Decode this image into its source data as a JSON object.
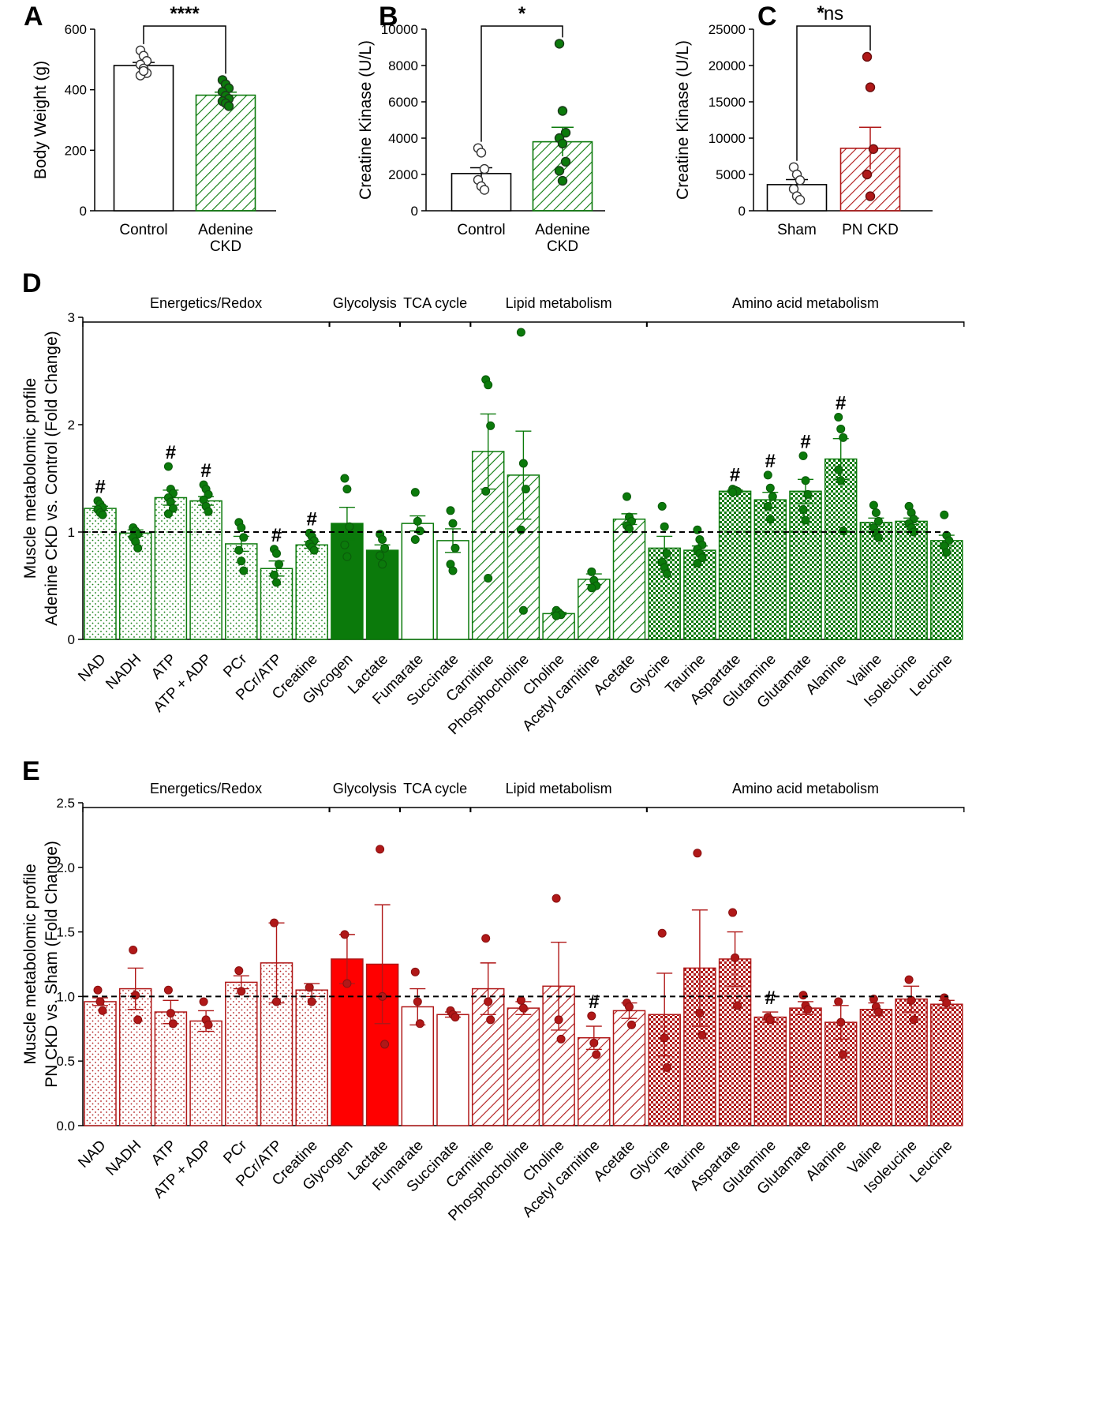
{
  "colors": {
    "green": "#0b7a0b",
    "green_light": "#dff0df",
    "red": "#b01818",
    "red_bright": "#ff0000",
    "black": "#000000",
    "point_open_stroke": "#333333"
  },
  "chart_data": [
    {
      "id": "A",
      "label": "A",
      "type": "bar",
      "ylabel": "Body Weight (g)",
      "ylim": [
        0,
        600
      ],
      "yticks": [
        0,
        200,
        400,
        600
      ],
      "categories": [
        {
          "name": "Control",
          "lines": [
            "Control"
          ],
          "mean": 480,
          "sem": 10,
          "fill": "open",
          "points": [
            530,
            512,
            495,
            483,
            470,
            455,
            447,
            462
          ]
        },
        {
          "name": "Adenine CKD",
          "lines": [
            "Adenine",
            "CKD"
          ],
          "mean": 382,
          "sem": 10,
          "fill": "hatch_green",
          "points": [
            432,
            418,
            405,
            393,
            380,
            370,
            362,
            355,
            346
          ]
        }
      ],
      "significance": {
        "label": "****",
        "between": [
          0,
          1
        ]
      }
    },
    {
      "id": "B",
      "label": "B",
      "type": "bar",
      "ylabel": "Creatine Kinase (U/L)",
      "ylim": [
        0,
        10000
      ],
      "yticks": [
        0,
        2000,
        4000,
        6000,
        8000,
        10000
      ],
      "categories": [
        {
          "name": "Control",
          "lines": [
            "Control"
          ],
          "mean": 2050,
          "sem": 320,
          "fill": "open",
          "points": [
            3450,
            3200,
            2300,
            1700,
            1350,
            1150
          ]
        },
        {
          "name": "Adenine CKD",
          "lines": [
            "Adenine",
            "CKD"
          ],
          "mean": 3800,
          "sem": 800,
          "fill": "hatch_green",
          "points": [
            9200,
            5500,
            4300,
            4000,
            3700,
            2700,
            2200,
            1650
          ]
        }
      ],
      "significance": {
        "label": "*",
        "between": [
          0,
          1
        ]
      }
    },
    {
      "id": "C",
      "label": "C",
      "type": "bar",
      "ylabel": "Creatine Kinase (U/L)",
      "ylim": [
        0,
        25000
      ],
      "yticks": [
        0,
        5000,
        10000,
        15000,
        20000,
        25000
      ],
      "corner_mark": "*",
      "categories": [
        {
          "name": "Sham",
          "lines": [
            "Sham"
          ],
          "mean": 3600,
          "sem": 700,
          "fill": "open",
          "points": [
            6000,
            5000,
            4200,
            3000,
            2000,
            1500
          ]
        },
        {
          "name": "PN CKD",
          "lines": [
            "PN CKD"
          ],
          "mean": 8600,
          "sem": 2900,
          "fill": "hatch_red",
          "points": [
            21200,
            17000,
            8500,
            5000,
            2000
          ]
        }
      ],
      "significance": {
        "label": "ns",
        "between": [
          0,
          1
        ]
      }
    },
    {
      "id": "D",
      "label": "D",
      "type": "bar",
      "ylabel": [
        "Muscle metabolomic profile",
        "Adenine CKD vs. Control (Fold Change)"
      ],
      "ylim": [
        0,
        3
      ],
      "yticks": [
        "0",
        "1",
        "2",
        "3"
      ],
      "ytick_values": [
        0,
        1,
        2,
        3
      ],
      "reference_line": 1.0,
      "color": "green",
      "groups": [
        {
          "label": "Energetics/Redox",
          "from": 0,
          "to": 6
        },
        {
          "label": "Glycolysis",
          "from": 7,
          "to": 8
        },
        {
          "label": "TCA cycle",
          "from": 9,
          "to": 10
        },
        {
          "label": "Lipid metabolism",
          "from": 11,
          "to": 15
        },
        {
          "label": "Amino acid metabolism",
          "from": 16,
          "to": 24
        }
      ],
      "categories": [
        {
          "name": "NAD",
          "mean": 1.22,
          "sem": 0.02,
          "fill": "dots",
          "points": [
            1.29,
            1.26,
            1.23,
            1.21,
            1.18,
            1.16
          ],
          "mark": "#"
        },
        {
          "name": "NADH",
          "mean": 0.99,
          "sem": 0.03,
          "fill": "dots",
          "points": [
            1.04,
            1.01,
            0.98,
            0.95,
            0.91,
            0.85
          ],
          "mark": ""
        },
        {
          "name": "ATP",
          "mean": 1.32,
          "sem": 0.07,
          "fill": "dots",
          "points": [
            1.61,
            1.4,
            1.36,
            1.32,
            1.28,
            1.22,
            1.17
          ],
          "mark": "#"
        },
        {
          "name": "ATP + ADP",
          "mean": 1.29,
          "sem": 0.04,
          "fill": "dots",
          "points": [
            1.44,
            1.4,
            1.35,
            1.3,
            1.24,
            1.19
          ],
          "mark": "#"
        },
        {
          "name": "PCr",
          "mean": 0.89,
          "sem": 0.07,
          "fill": "dots",
          "points": [
            1.09,
            1.04,
            0.95,
            0.83,
            0.73,
            0.64
          ],
          "mark": ""
        },
        {
          "name": "PCr/ATP",
          "mean": 0.66,
          "sem": 0.07,
          "fill": "dots",
          "points": [
            0.84,
            0.8,
            0.7,
            0.6,
            0.53
          ],
          "mark": "#"
        },
        {
          "name": "Creatine",
          "mean": 0.88,
          "sem": 0.03,
          "fill": "dots",
          "points": [
            0.99,
            0.96,
            0.92,
            0.89,
            0.86,
            0.83
          ],
          "mark": "#"
        },
        {
          "name": "Glycogen",
          "mean": 1.08,
          "sem": 0.15,
          "fill": "solid",
          "points": [
            1.5,
            1.4,
            1.05,
            0.88,
            0.77
          ],
          "mark": ""
        },
        {
          "name": "Lactate",
          "mean": 0.83,
          "sem": 0.05,
          "fill": "solid",
          "points": [
            0.98,
            0.93,
            0.85,
            0.78,
            0.7
          ],
          "mark": ""
        },
        {
          "name": "Fumarate",
          "mean": 1.08,
          "sem": 0.07,
          "fill": "open",
          "points": [
            1.37,
            1.1,
            1.01,
            0.93
          ],
          "mark": ""
        },
        {
          "name": "Succinate",
          "mean": 0.92,
          "sem": 0.11,
          "fill": "open",
          "points": [
            1.2,
            1.08,
            0.85,
            0.7,
            0.64
          ],
          "mark": ""
        },
        {
          "name": "Carnitine",
          "mean": 1.75,
          "sem": 0.35,
          "fill": "hatch",
          "points": [
            2.42,
            2.37,
            1.99,
            1.38,
            0.57
          ],
          "mark": ""
        },
        {
          "name": "Phosphocholine",
          "mean": 1.53,
          "sem": 0.41,
          "fill": "hatch",
          "points": [
            2.86,
            1.64,
            1.4,
            1.02,
            0.27
          ],
          "mark": ""
        },
        {
          "name": "Choline",
          "mean": 0.24,
          "sem": 0.01,
          "fill": "hatch",
          "points": [
            0.27,
            0.25,
            0.23,
            0.22
          ],
          "mark": ""
        },
        {
          "name": "Acetyl carnitine",
          "mean": 0.56,
          "sem": 0.05,
          "fill": "hatch",
          "points": [
            0.63,
            0.55,
            0.5,
            0.48
          ],
          "mark": ""
        },
        {
          "name": "Acetate",
          "mean": 1.12,
          "sem": 0.05,
          "fill": "hatch",
          "points": [
            1.33,
            1.14,
            1.1,
            1.06,
            1.03
          ],
          "mark": ""
        },
        {
          "name": "Glycine",
          "mean": 0.85,
          "sem": 0.11,
          "fill": "checker",
          "points": [
            1.24,
            1.05,
            0.8,
            0.72,
            0.67,
            0.61
          ],
          "mark": ""
        },
        {
          "name": "Taurine",
          "mean": 0.83,
          "sem": 0.04,
          "fill": "checker",
          "points": [
            1.02,
            0.93,
            0.88,
            0.84,
            0.8,
            0.76,
            0.71
          ],
          "mark": ""
        },
        {
          "name": "Aspartate",
          "mean": 1.38,
          "sem": 0.01,
          "fill": "checker",
          "points": [
            1.4,
            1.39,
            1.38,
            1.37
          ],
          "mark": "#"
        },
        {
          "name": "Glutamine",
          "mean": 1.3,
          "sem": 0.07,
          "fill": "checker",
          "points": [
            1.53,
            1.41,
            1.33,
            1.24,
            1.12
          ],
          "mark": "#"
        },
        {
          "name": "Glutamate",
          "mean": 1.38,
          "sem": 0.11,
          "fill": "checker",
          "points": [
            1.71,
            1.48,
            1.35,
            1.21,
            1.11
          ],
          "mark": "#"
        },
        {
          "name": "Alanine",
          "mean": 1.68,
          "sem": 0.19,
          "fill": "checker",
          "points": [
            2.07,
            1.96,
            1.88,
            1.58,
            1.48,
            1.01
          ],
          "mark": "#"
        },
        {
          "name": "Valine",
          "mean": 1.09,
          "sem": 0.04,
          "fill": "checker",
          "points": [
            1.25,
            1.18,
            1.1,
            1.04,
            0.99,
            0.95
          ],
          "mark": ""
        },
        {
          "name": "Isoleucine",
          "mean": 1.1,
          "sem": 0.03,
          "fill": "checker",
          "points": [
            1.24,
            1.18,
            1.12,
            1.08,
            1.04,
            1.0
          ],
          "mark": ""
        },
        {
          "name": "Leucine",
          "mean": 0.92,
          "sem": 0.05,
          "fill": "checker",
          "points": [
            1.16,
            0.97,
            0.92,
            0.87,
            0.81
          ],
          "mark": ""
        }
      ]
    },
    {
      "id": "E",
      "label": "E",
      "type": "bar",
      "ylabel": [
        "Muscle metabolomic profile",
        "PN CKD vs. Sham (Fold Change)"
      ],
      "ylim": [
        0,
        2.5
      ],
      "yticks": [
        "0.0",
        "0.5",
        "1.0",
        "1.5",
        "2.0",
        "2.5"
      ],
      "ytick_values": [
        0,
        0.5,
        1.0,
        1.5,
        2.0,
        2.5
      ],
      "reference_line": 1.0,
      "color": "red",
      "groups": [
        {
          "label": "Energetics/Redox",
          "from": 0,
          "to": 6
        },
        {
          "label": "Glycolysis",
          "from": 7,
          "to": 8
        },
        {
          "label": "TCA cycle",
          "from": 9,
          "to": 10
        },
        {
          "label": "Lipid metabolism",
          "from": 11,
          "to": 15
        },
        {
          "label": "Amino acid metabolism",
          "from": 16,
          "to": 24
        }
      ],
      "categories": [
        {
          "name": "NAD",
          "mean": 0.96,
          "sem": 0.03,
          "fill": "dots",
          "points": [
            1.05,
            0.96,
            0.89
          ],
          "mark": ""
        },
        {
          "name": "NADH",
          "mean": 1.06,
          "sem": 0.16,
          "fill": "dots",
          "points": [
            1.36,
            1.01,
            0.82
          ],
          "mark": ""
        },
        {
          "name": "ATP",
          "mean": 0.88,
          "sem": 0.09,
          "fill": "dots",
          "points": [
            1.05,
            0.87,
            0.79
          ],
          "mark": ""
        },
        {
          "name": "ATP + ADP",
          "mean": 0.81,
          "sem": 0.08,
          "fill": "dots",
          "points": [
            0.96,
            0.82,
            0.78
          ],
          "mark": ""
        },
        {
          "name": "PCr",
          "mean": 1.11,
          "sem": 0.05,
          "fill": "dots",
          "points": [
            1.2,
            1.04
          ],
          "mark": ""
        },
        {
          "name": "PCr/ATP",
          "mean": 1.26,
          "sem": 0.31,
          "fill": "dots",
          "points": [
            1.57,
            0.96
          ],
          "mark": ""
        },
        {
          "name": "Creatine",
          "mean": 1.05,
          "sem": 0.05,
          "fill": "dots",
          "points": [
            1.07,
            0.96
          ],
          "mark": ""
        },
        {
          "name": "Glycogen",
          "mean": 1.29,
          "sem": 0.19,
          "fill": "solid",
          "points": [
            1.48,
            1.1
          ],
          "mark": ""
        },
        {
          "name": "Lactate",
          "mean": 1.25,
          "sem": 0.46,
          "fill": "solid",
          "points": [
            2.14,
            1.0,
            0.63
          ],
          "mark": ""
        },
        {
          "name": "Fumarate",
          "mean": 0.92,
          "sem": 0.14,
          "fill": "open",
          "points": [
            1.19,
            0.96,
            0.79
          ],
          "mark": ""
        },
        {
          "name": "Succinate",
          "mean": 0.86,
          "sem": 0.02,
          "fill": "open",
          "points": [
            0.89,
            0.86,
            0.84
          ],
          "mark": ""
        },
        {
          "name": "Carnitine",
          "mean": 1.06,
          "sem": 0.2,
          "fill": "hatch",
          "points": [
            1.45,
            0.96,
            0.82
          ],
          "mark": ""
        },
        {
          "name": "Phosphocholine",
          "mean": 0.91,
          "sem": 0.05,
          "fill": "hatch",
          "points": [
            0.97,
            0.91
          ],
          "mark": ""
        },
        {
          "name": "Choline",
          "mean": 1.08,
          "sem": 0.34,
          "fill": "hatch",
          "points": [
            1.76,
            0.82,
            0.67
          ],
          "mark": ""
        },
        {
          "name": "Acetyl carnitine",
          "mean": 0.68,
          "sem": 0.09,
          "fill": "hatch",
          "points": [
            0.85,
            0.64,
            0.55
          ],
          "mark": "#"
        },
        {
          "name": "Acetate",
          "mean": 0.89,
          "sem": 0.06,
          "fill": "hatch",
          "points": [
            0.95,
            0.92,
            0.78
          ],
          "mark": ""
        },
        {
          "name": "Glycine",
          "mean": 0.86,
          "sem": 0.32,
          "fill": "checker",
          "points": [
            1.49,
            0.68,
            0.45
          ],
          "mark": ""
        },
        {
          "name": "Taurine",
          "mean": 1.22,
          "sem": 0.45,
          "fill": "checker",
          "points": [
            2.11,
            0.87,
            0.7
          ],
          "mark": ""
        },
        {
          "name": "Aspartate",
          "mean": 1.29,
          "sem": 0.21,
          "fill": "checker",
          "points": [
            1.65,
            1.3,
            0.93
          ],
          "mark": ""
        },
        {
          "name": "Glutamine",
          "mean": 0.84,
          "sem": 0.04,
          "fill": "checker",
          "points": [
            0.84,
            0.82
          ],
          "mark": "#"
        },
        {
          "name": "Glutamate",
          "mean": 0.91,
          "sem": 0.05,
          "fill": "checker",
          "points": [
            1.01,
            0.93,
            0.9
          ],
          "mark": ""
        },
        {
          "name": "Alanine",
          "mean": 0.8,
          "sem": 0.13,
          "fill": "checker",
          "points": [
            0.96,
            0.8,
            0.55
          ],
          "mark": ""
        },
        {
          "name": "Valine",
          "mean": 0.9,
          "sem": 0.05,
          "fill": "checker",
          "points": [
            0.98,
            0.92,
            0.88
          ],
          "mark": ""
        },
        {
          "name": "Isoleucine",
          "mean": 0.98,
          "sem": 0.1,
          "fill": "checker",
          "points": [
            1.13,
            0.97,
            0.82
          ],
          "mark": ""
        },
        {
          "name": "Leucine",
          "mean": 0.94,
          "sem": 0.03,
          "fill": "checker",
          "points": [
            0.99,
            0.95
          ],
          "mark": ""
        }
      ]
    }
  ]
}
